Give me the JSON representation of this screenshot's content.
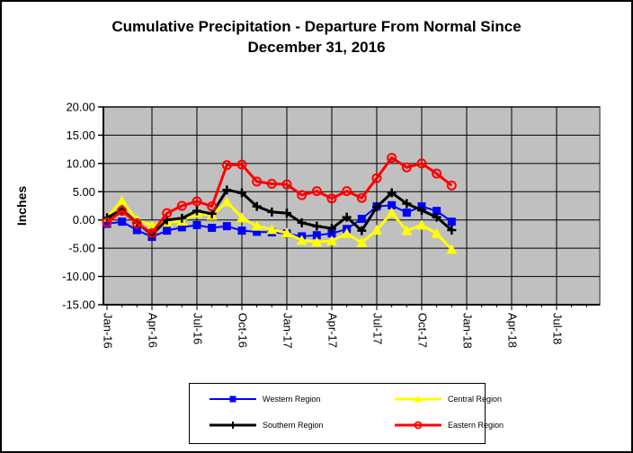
{
  "window": {
    "background": "#FFFFFF",
    "border_color": "#000000"
  },
  "chart_data": {
    "type": "line",
    "title_line1": "Cumulative Precipitation - Departure From Normal Since",
    "title_line2": "December 31, 2016",
    "ylabel": "Inches",
    "xlabel": "",
    "ylim": [
      -15,
      20
    ],
    "ytick_step": 5,
    "ytick_labels": [
      "20.00",
      "15.00",
      "10.00",
      "5.00",
      "0.00",
      "-5.00",
      "-10.00",
      "-15.00"
    ],
    "xtick_labels": [
      "Jan-16",
      "Apr-16",
      "Jul-16",
      "Oct-16",
      "Jan-17",
      "Apr-17",
      "Jul-17",
      "Oct-17",
      "Jan-18",
      "Apr-18",
      "Jul-18"
    ],
    "xtick_month_interval": 3,
    "x_months_plotted": 24,
    "grid": true,
    "plot_bg": "#C0C0C0",
    "gridline_color": "#000000",
    "legend_position": "bottom",
    "series": [
      {
        "name": "Western Region",
        "color": "#0000FF",
        "marker": "square",
        "values": [
          -0.7,
          -0.3,
          -1.8,
          -3.0,
          -1.9,
          -1.3,
          -0.9,
          -1.4,
          -1.1,
          -1.9,
          -2.1,
          -2.2,
          -2.4,
          -2.9,
          -2.7,
          -2.4,
          -1.6,
          0.2,
          2.4,
          2.6,
          1.3,
          2.4,
          1.6,
          -0.3
        ]
      },
      {
        "name": "Central Region",
        "color": "#FFFF00",
        "marker": "triangle",
        "values": [
          0.5,
          3.4,
          0.0,
          -1.0,
          -0.4,
          -0.2,
          1.2,
          0.8,
          3.2,
          0.4,
          -1.1,
          -1.7,
          -2.3,
          -3.6,
          -3.9,
          -3.7,
          -2.4,
          -4.0,
          -1.8,
          1.3,
          -1.9,
          -0.9,
          -2.4,
          -5.2
        ]
      },
      {
        "name": "Southern Region",
        "color": "#000000",
        "marker": "plus",
        "values": [
          0.4,
          1.8,
          -0.5,
          -2.6,
          0.0,
          0.3,
          1.6,
          1.1,
          5.3,
          4.8,
          2.4,
          1.4,
          1.2,
          -0.5,
          -1.1,
          -1.5,
          0.5,
          -1.9,
          2.3,
          4.8,
          2.9,
          1.7,
          0.5,
          -1.8
        ]
      },
      {
        "name": "Eastern Region",
        "color": "#FF0000",
        "marker": "circle",
        "values": [
          -0.4,
          1.6,
          -0.6,
          -2.3,
          1.2,
          2.5,
          3.3,
          2.4,
          9.7,
          9.8,
          6.8,
          6.4,
          6.3,
          4.4,
          5.1,
          3.8,
          5.1,
          3.9,
          7.4,
          11.0,
          9.3,
          10.0,
          8.2,
          6.1
        ]
      }
    ]
  }
}
